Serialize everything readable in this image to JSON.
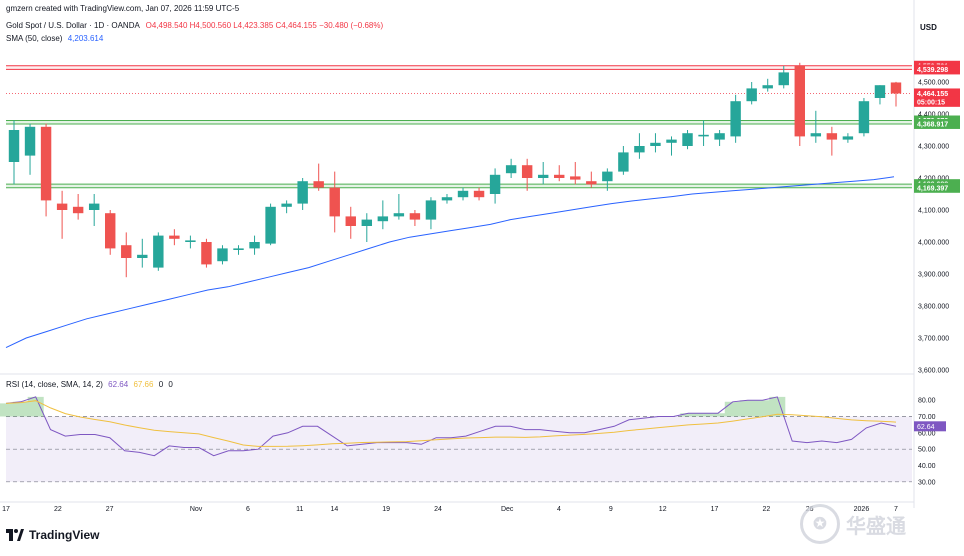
{
  "header": {
    "created": "gmzern created with TradingView.com, Jan 07, 2026 11:59 UTC-5",
    "symbol": "Gold Spot / U.S. Dollar · 1D · OANDA",
    "ohlc": "O4,498.540 H4,500.560 L4,423.385 C4,464.155 −30.480 (−0.68%)",
    "sma_label": "SMA (50, close)",
    "sma_value": "4,203.614"
  },
  "price_axis": {
    "currency": "USD",
    "ticks": [
      "4,500.000",
      "4,400.000",
      "4,300.000",
      "4,200.000",
      "4,100.000",
      "4,000.000",
      "3,900.000",
      "3,800.000",
      "3,700.000",
      "3,600.000"
    ],
    "labels": [
      {
        "text": "4,550.721",
        "value": 4550.721,
        "color": "#f23645"
      },
      {
        "text": "4,539.298",
        "value": 4539.298,
        "color": "#f23645"
      },
      {
        "text": "4,464.155",
        "value": 4464.155,
        "color": "#f23645"
      },
      {
        "text": "05:00:15",
        "value": 4438,
        "color": "#f23645"
      },
      {
        "text": "4,379.672",
        "value": 4379.672,
        "color": "#4caf50"
      },
      {
        "text": "4,368.917",
        "value": 4368.917,
        "color": "#4caf50"
      },
      {
        "text": "4,180.688",
        "value": 4180.688,
        "color": "#4caf50"
      },
      {
        "text": "4,169.397",
        "value": 4169.397,
        "color": "#4caf50"
      }
    ]
  },
  "rsi": {
    "label": "RSI (14, close, SMA, 14, 2)",
    "value1": "62.64",
    "value2": "67.66",
    "value3": "0",
    "value4": "0",
    "ticks": [
      "80.00",
      "70.00",
      "60.00",
      "50.00",
      "40.00",
      "30.00"
    ],
    "values": [
      78,
      79,
      82,
      62,
      58,
      59,
      59,
      57,
      49,
      48,
      46,
      52,
      51,
      51,
      46,
      49,
      49,
      50,
      58,
      60,
      64,
      64,
      58,
      52,
      53,
      54,
      54,
      54,
      53,
      57,
      57,
      58,
      61,
      64,
      64,
      62,
      62,
      61,
      60,
      60,
      62,
      64,
      68,
      69,
      70,
      70,
      72,
      72,
      72,
      79,
      80,
      80,
      82,
      55,
      54,
      55,
      54,
      56,
      63,
      66,
      64
    ]
  },
  "x_axis": {
    "ticks": [
      "17",
      "22",
      "27",
      "Nov",
      "6",
      "11",
      "14",
      "19",
      "24",
      "Dec",
      "4",
      "9",
      "12",
      "17",
      "22",
      "26",
      "2026",
      "7"
    ]
  },
  "chart_data": {
    "type": "candlestick",
    "title": "Gold Spot / U.S. Dollar · 1D · OANDA",
    "ylim": [
      3600,
      4600
    ],
    "candles": [
      {
        "o": 4250,
        "h": 4380,
        "l": 4180,
        "c": 4350
      },
      {
        "o": 4270,
        "h": 4370,
        "l": 4210,
        "c": 4360
      },
      {
        "o": 4360,
        "h": 4370,
        "l": 4080,
        "c": 4130
      },
      {
        "o": 4120,
        "h": 4160,
        "l": 4010,
        "c": 4100
      },
      {
        "o": 4110,
        "h": 4150,
        "l": 4070,
        "c": 4090
      },
      {
        "o": 4100,
        "h": 4150,
        "l": 4050,
        "c": 4120
      },
      {
        "o": 4090,
        "h": 4100,
        "l": 3960,
        "c": 3980
      },
      {
        "o": 3990,
        "h": 4030,
        "l": 3890,
        "c": 3950
      },
      {
        "o": 3950,
        "h": 4010,
        "l": 3920,
        "c": 3960
      },
      {
        "o": 3920,
        "h": 4030,
        "l": 3910,
        "c": 4020
      },
      {
        "o": 4020,
        "h": 4040,
        "l": 3990,
        "c": 4010
      },
      {
        "o": 4000,
        "h": 4020,
        "l": 3980,
        "c": 4005
      },
      {
        "o": 4000,
        "h": 4010,
        "l": 3920,
        "c": 3930
      },
      {
        "o": 3940,
        "h": 3990,
        "l": 3930,
        "c": 3980
      },
      {
        "o": 3975,
        "h": 3990,
        "l": 3960,
        "c": 3980
      },
      {
        "o": 3980,
        "h": 4020,
        "l": 3960,
        "c": 4000
      },
      {
        "o": 3995,
        "h": 4120,
        "l": 3990,
        "c": 4110
      },
      {
        "o": 4110,
        "h": 4130,
        "l": 4090,
        "c": 4120
      },
      {
        "o": 4120,
        "h": 4200,
        "l": 4100,
        "c": 4190
      },
      {
        "o": 4190,
        "h": 4245,
        "l": 4160,
        "c": 4170
      },
      {
        "o": 4170,
        "h": 4220,
        "l": 4030,
        "c": 4080
      },
      {
        "o": 4080,
        "h": 4110,
        "l": 4010,
        "c": 4050
      },
      {
        "o": 4050,
        "h": 4090,
        "l": 4000,
        "c": 4070
      },
      {
        "o": 4065,
        "h": 4130,
        "l": 4040,
        "c": 4080
      },
      {
        "o": 4080,
        "h": 4150,
        "l": 4070,
        "c": 4090
      },
      {
        "o": 4090,
        "h": 4100,
        "l": 4050,
        "c": 4070
      },
      {
        "o": 4070,
        "h": 4140,
        "l": 4040,
        "c": 4130
      },
      {
        "o": 4130,
        "h": 4150,
        "l": 4120,
        "c": 4140
      },
      {
        "o": 4140,
        "h": 4170,
        "l": 4130,
        "c": 4160
      },
      {
        "o": 4160,
        "h": 4170,
        "l": 4130,
        "c": 4140
      },
      {
        "o": 4150,
        "h": 4230,
        "l": 4120,
        "c": 4210
      },
      {
        "o": 4215,
        "h": 4260,
        "l": 4200,
        "c": 4240
      },
      {
        "o": 4240,
        "h": 4260,
        "l": 4160,
        "c": 4200
      },
      {
        "o": 4200,
        "h": 4250,
        "l": 4180,
        "c": 4210
      },
      {
        "o": 4210,
        "h": 4240,
        "l": 4190,
        "c": 4200
      },
      {
        "o": 4205,
        "h": 4250,
        "l": 4180,
        "c": 4195
      },
      {
        "o": 4190,
        "h": 4220,
        "l": 4170,
        "c": 4180
      },
      {
        "o": 4190,
        "h": 4230,
        "l": 4160,
        "c": 4220
      },
      {
        "o": 4220,
        "h": 4300,
        "l": 4210,
        "c": 4280
      },
      {
        "o": 4280,
        "h": 4340,
        "l": 4260,
        "c": 4300
      },
      {
        "o": 4300,
        "h": 4340,
        "l": 4280,
        "c": 4310
      },
      {
        "o": 4310,
        "h": 4330,
        "l": 4270,
        "c": 4320
      },
      {
        "o": 4300,
        "h": 4350,
        "l": 4290,
        "c": 4340
      },
      {
        "o": 4330,
        "h": 4380,
        "l": 4300,
        "c": 4335
      },
      {
        "o": 4320,
        "h": 4350,
        "l": 4300,
        "c": 4340
      },
      {
        "o": 4330,
        "h": 4460,
        "l": 4310,
        "c": 4440
      },
      {
        "o": 4440,
        "h": 4500,
        "l": 4430,
        "c": 4480
      },
      {
        "o": 4480,
        "h": 4510,
        "l": 4470,
        "c": 4490
      },
      {
        "o": 4490,
        "h": 4550,
        "l": 4480,
        "c": 4530
      },
      {
        "o": 4550,
        "h": 4560,
        "l": 4300,
        "c": 4330
      },
      {
        "o": 4330,
        "h": 4410,
        "l": 4310,
        "c": 4340
      },
      {
        "o": 4340,
        "h": 4360,
        "l": 4270,
        "c": 4320
      },
      {
        "o": 4320,
        "h": 4340,
        "l": 4310,
        "c": 4330
      },
      {
        "o": 4340,
        "h": 4450,
        "l": 4330,
        "c": 4440
      },
      {
        "o": 4450,
        "h": 4490,
        "l": 4430,
        "c": 4490
      },
      {
        "o": 4498.54,
        "h": 4500.56,
        "l": 4423.385,
        "c": 4464.155
      }
    ],
    "sma": [
      3670,
      3700,
      3720,
      3740,
      3760,
      3775,
      3790,
      3805,
      3820,
      3835,
      3850,
      3860,
      3875,
      3890,
      3905,
      3920,
      3940,
      3960,
      3980,
      4000,
      4015,
      4025,
      4035,
      4045,
      4055,
      4070,
      4080,
      4090,
      4100,
      4110,
      4120,
      4128,
      4135,
      4142,
      4150,
      4155,
      4160,
      4165,
      4170,
      4175,
      4180,
      4185,
      4190,
      4195,
      4203.614
    ],
    "levels": [
      {
        "value": 4550.721,
        "color": "#f23645"
      },
      {
        "value": 4539.298,
        "color": "#f23645"
      },
      {
        "value": 4379.672,
        "color": "#4caf50"
      },
      {
        "value": 4368.917,
        "color": "#4caf50"
      },
      {
        "value": 4180.688,
        "color": "#4caf50"
      },
      {
        "value": 4169.397,
        "color": "#4caf50"
      }
    ],
    "up_color": "#26a69a",
    "down_color": "#ef5350",
    "sma_color": "#2962ff"
  },
  "footer": {
    "brand": "TradingView"
  },
  "watermark": {
    "text": "华盛通"
  }
}
